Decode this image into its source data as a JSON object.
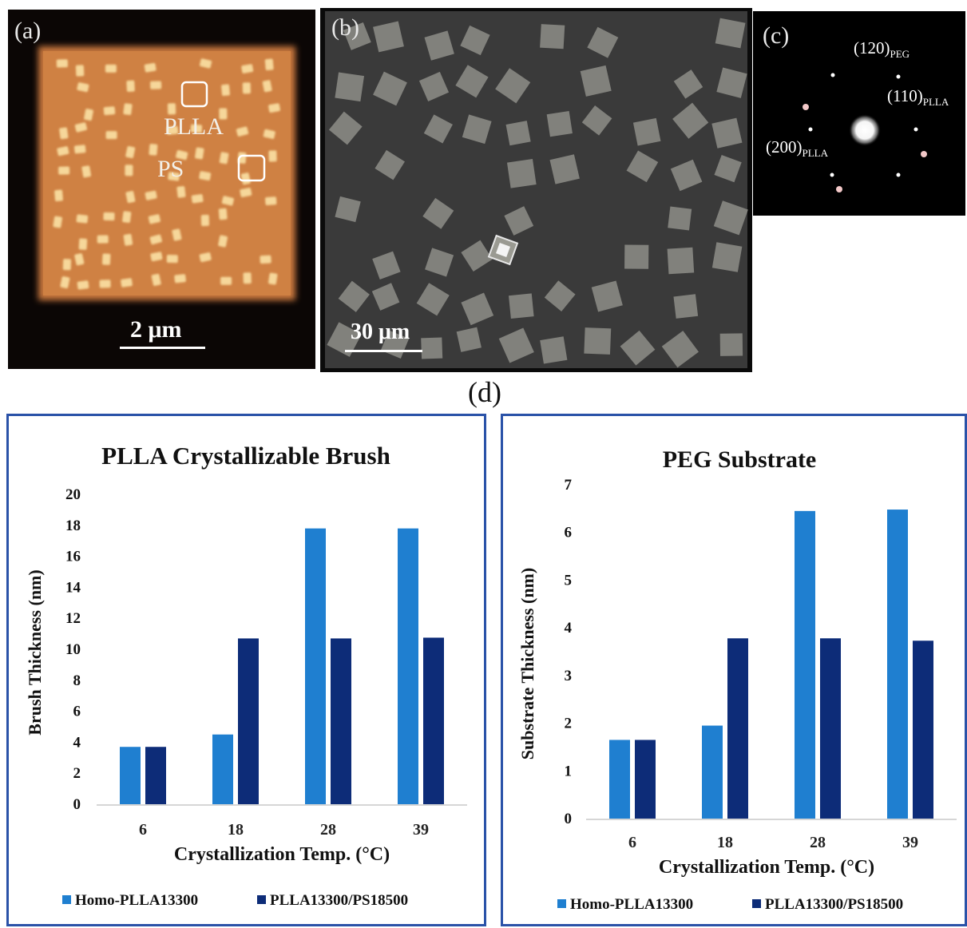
{
  "panels": {
    "a": {
      "label": "(a)",
      "annotation_plla": "PLLA",
      "annotation_ps": "PS",
      "scale": "2 μm"
    },
    "b": {
      "label": "(b)",
      "scale": "30 μm"
    },
    "c": {
      "label": "(c)",
      "spots": [
        {
          "hkl": "(120)",
          "sub": "PEG"
        },
        {
          "hkl": "(110)",
          "sub": "PLLA"
        },
        {
          "hkl": "(200)",
          "sub": "PLLA"
        }
      ]
    },
    "d": {
      "label": "(d)"
    }
  },
  "colors": {
    "homo": "#1f7fd0",
    "blend": "#0d2c78",
    "frame": "#2a52a8"
  },
  "chart_data": [
    {
      "type": "bar",
      "title": "PLLA Crystallizable  Brush",
      "xlabel": "Crystallization  Temp. (°C)",
      "ylabel": "Brush Thickness (nm)",
      "categories": [
        "6",
        "18",
        "28",
        "39"
      ],
      "ylim": [
        0,
        20
      ],
      "yticks": [
        "0",
        "2",
        "4",
        "6",
        "8",
        "10",
        "12",
        "14",
        "16",
        "18",
        "20"
      ],
      "series": [
        {
          "name": "Homo-PLLA13300",
          "values": [
            3.7,
            4.5,
            17.8,
            17.8
          ]
        },
        {
          "name": "PLLA13300/PS18500",
          "values": [
            3.7,
            10.7,
            10.7,
            10.75
          ]
        }
      ],
      "grid": false,
      "legend": "bottom"
    },
    {
      "type": "bar",
      "title": "PEG Substrate",
      "xlabel": "Crystallization  Temp. (°C)",
      "ylabel": "Substrate Thickness (nm)",
      "categories": [
        "6",
        "18",
        "28",
        "39"
      ],
      "ylim": [
        0,
        7
      ],
      "yticks": [
        "0",
        "1",
        "2",
        "3",
        "4",
        "5",
        "6",
        "7"
      ],
      "series": [
        {
          "name": "Homo-PLLA13300",
          "values": [
            1.65,
            1.95,
            6.45,
            6.48
          ]
        },
        {
          "name": "PLLA13300/PS18500",
          "values": [
            1.65,
            3.78,
            3.78,
            3.73
          ]
        }
      ],
      "grid": false,
      "legend": "bottom"
    }
  ]
}
